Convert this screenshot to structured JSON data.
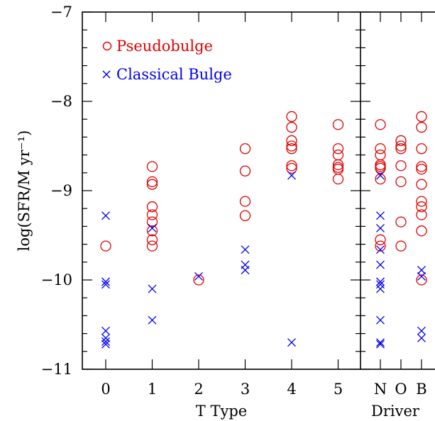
{
  "chart_data": [
    {
      "type": "scatter",
      "ylabel": "log(SFR/M yr⁻¹)",
      "xlabel": "T Type",
      "ylim": [
        -11,
        -7
      ],
      "xlim": [
        -0.5,
        5.5
      ],
      "x_ticks": [
        "0",
        "1",
        "2",
        "3",
        "4",
        "5"
      ],
      "y_ticks": [
        "−7",
        "−8",
        "−9",
        "−10",
        "−11"
      ],
      "legend": "top-left",
      "series": [
        {
          "name": "Pseudobulge",
          "marker": "circle",
          "color": "#e00000",
          "points": [
            {
              "x": 0,
              "y": -9.62
            },
            {
              "x": 1,
              "y": -8.73
            },
            {
              "x": 1,
              "y": -8.9
            },
            {
              "x": 1,
              "y": -8.93
            },
            {
              "x": 1,
              "y": -9.18
            },
            {
              "x": 1,
              "y": -9.27
            },
            {
              "x": 1,
              "y": -9.35
            },
            {
              "x": 1,
              "y": -9.45
            },
            {
              "x": 1,
              "y": -9.55
            },
            {
              "x": 1,
              "y": -9.62
            },
            {
              "x": 2,
              "y": -10.0
            },
            {
              "x": 3,
              "y": -8.53
            },
            {
              "x": 3,
              "y": -8.78
            },
            {
              "x": 3,
              "y": -9.12
            },
            {
              "x": 3,
              "y": -9.28
            },
            {
              "x": 4,
              "y": -8.17
            },
            {
              "x": 4,
              "y": -8.29
            },
            {
              "x": 4,
              "y": -8.44
            },
            {
              "x": 4,
              "y": -8.5
            },
            {
              "x": 4,
              "y": -8.53
            },
            {
              "x": 4,
              "y": -8.72
            },
            {
              "x": 4,
              "y": -8.75
            },
            {
              "x": 5,
              "y": -8.26
            },
            {
              "x": 5,
              "y": -8.53
            },
            {
              "x": 5,
              "y": -8.6
            },
            {
              "x": 5,
              "y": -8.71
            },
            {
              "x": 5,
              "y": -8.74
            },
            {
              "x": 5,
              "y": -8.76
            },
            {
              "x": 5,
              "y": -8.87
            }
          ]
        },
        {
          "name": "Classical Bulge",
          "marker": "cross",
          "color": "#0000ee",
          "points": [
            {
              "x": 0,
              "y": -9.28
            },
            {
              "x": 0,
              "y": -10.02
            },
            {
              "x": 0,
              "y": -10.05
            },
            {
              "x": 0,
              "y": -10.57
            },
            {
              "x": 0,
              "y": -10.65
            },
            {
              "x": 0,
              "y": -10.69
            },
            {
              "x": 0,
              "y": -10.72
            },
            {
              "x": 1,
              "y": -9.42
            },
            {
              "x": 1,
              "y": -10.1
            },
            {
              "x": 1,
              "y": -10.45
            },
            {
              "x": 2,
              "y": -9.96
            },
            {
              "x": 3,
              "y": -9.66
            },
            {
              "x": 3,
              "y": -9.83
            },
            {
              "x": 3,
              "y": -9.89
            },
            {
              "x": 4,
              "y": -8.83
            },
            {
              "x": 4,
              "y": -10.7
            }
          ]
        }
      ]
    },
    {
      "type": "scatter",
      "xlabel": "Driver",
      "ylim": [
        -11,
        -7
      ],
      "categories": [
        "N",
        "O",
        "B"
      ],
      "series": [
        {
          "name": "Pseudobulge",
          "marker": "circle",
          "color": "#e00000",
          "points": [
            {
              "x": "N",
              "y": -8.26
            },
            {
              "x": "N",
              "y": -8.53
            },
            {
              "x": "N",
              "y": -8.6
            },
            {
              "x": "N",
              "y": -8.71
            },
            {
              "x": "N",
              "y": -8.73
            },
            {
              "x": "N",
              "y": -8.75
            },
            {
              "x": "N",
              "y": -8.87
            },
            {
              "x": "N",
              "y": -9.55
            },
            {
              "x": "N",
              "y": -9.62
            },
            {
              "x": "O",
              "y": -8.44
            },
            {
              "x": "O",
              "y": -8.5
            },
            {
              "x": "O",
              "y": -8.53
            },
            {
              "x": "O",
              "y": -8.72
            },
            {
              "x": "O",
              "y": -8.9
            },
            {
              "x": "O",
              "y": -9.35
            },
            {
              "x": "O",
              "y": -9.62
            },
            {
              "x": "B",
              "y": -8.17
            },
            {
              "x": "B",
              "y": -8.29
            },
            {
              "x": "B",
              "y": -8.53
            },
            {
              "x": "B",
              "y": -8.73
            },
            {
              "x": "B",
              "y": -8.76
            },
            {
              "x": "B",
              "y": -8.93
            },
            {
              "x": "B",
              "y": -9.12
            },
            {
              "x": "B",
              "y": -9.18
            },
            {
              "x": "B",
              "y": -9.27
            },
            {
              "x": "B",
              "y": -9.45
            },
            {
              "x": "B",
              "y": -10.0
            }
          ]
        },
        {
          "name": "Classical Bulge",
          "marker": "cross",
          "color": "#0000ee",
          "points": [
            {
              "x": "N",
              "y": -8.83
            },
            {
              "x": "N",
              "y": -9.28
            },
            {
              "x": "N",
              "y": -9.42
            },
            {
              "x": "N",
              "y": -9.66
            },
            {
              "x": "N",
              "y": -9.83
            },
            {
              "x": "N",
              "y": -10.02
            },
            {
              "x": "N",
              "y": -10.05
            },
            {
              "x": "N",
              "y": -10.1
            },
            {
              "x": "N",
              "y": -10.45
            },
            {
              "x": "N",
              "y": -10.7
            },
            {
              "x": "N",
              "y": -10.72
            },
            {
              "x": "B",
              "y": -9.89
            },
            {
              "x": "B",
              "y": -9.96
            },
            {
              "x": "B",
              "y": -10.57
            },
            {
              "x": "B",
              "y": -10.65
            }
          ]
        }
      ]
    }
  ],
  "legend": {
    "pseudobulge_label": "Pseudobulge",
    "classical_label": "Classical Bulge"
  }
}
